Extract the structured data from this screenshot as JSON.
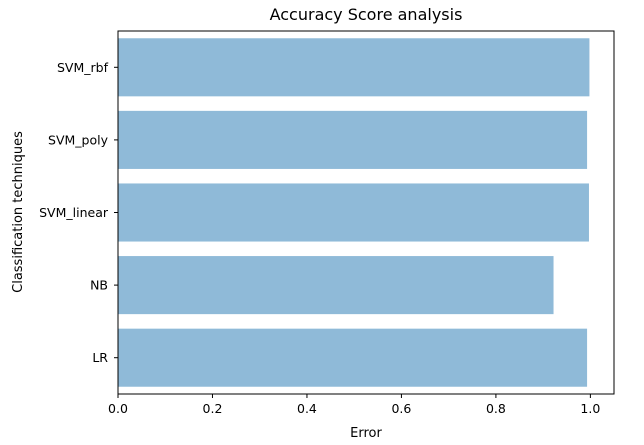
{
  "chart_data": {
    "type": "bar",
    "orientation": "horizontal",
    "title": "Accuracy Score analysis",
    "xlabel": "Error",
    "ylabel": "Classification techniques",
    "categories": [
      "LR",
      "NB",
      "SVM_linear",
      "SVM_poly",
      "SVM_rbf"
    ],
    "values": [
      0.993,
      0.922,
      0.997,
      0.993,
      0.998
    ],
    "xlim": [
      0.0,
      1.05
    ],
    "xticks": [
      "0.0",
      "0.2",
      "0.4",
      "0.6",
      "0.8",
      "1.0"
    ],
    "grid": false,
    "bar_color": "#8fbad8"
  }
}
